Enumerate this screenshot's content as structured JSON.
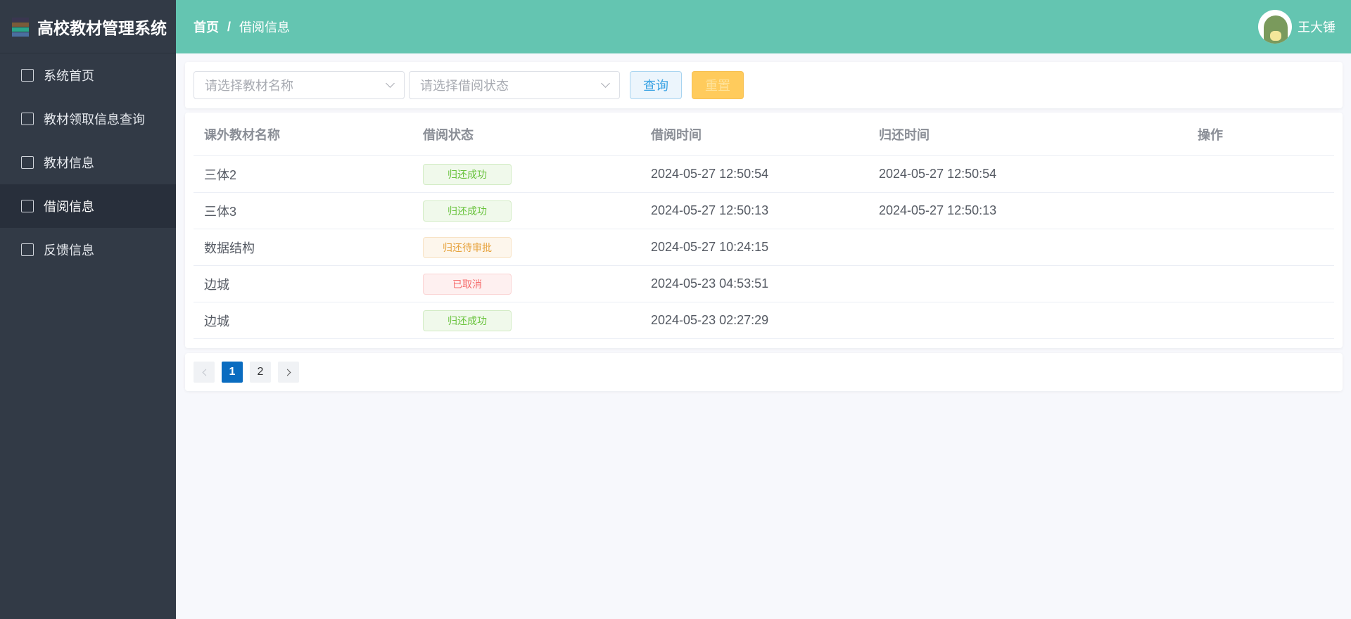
{
  "app": {
    "title": "高校教材管理系统"
  },
  "sidebar": {
    "items": [
      {
        "label": "系统首页",
        "icon": "home-icon"
      },
      {
        "label": "教材领取信息查询",
        "icon": "notebook-icon"
      },
      {
        "label": "教材信息",
        "icon": "book-icon"
      },
      {
        "label": "借阅信息",
        "icon": "document-icon",
        "active": true
      },
      {
        "label": "反馈信息",
        "icon": "chat-icon"
      }
    ]
  },
  "header": {
    "breadcrumb": [
      "首页",
      "借阅信息"
    ],
    "separator": "/",
    "user": "王大锤"
  },
  "search": {
    "name_placeholder": "请选择教材名称",
    "status_placeholder": "请选择借阅状态",
    "query": "查询",
    "reset": "重置"
  },
  "table": {
    "columns": [
      "课外教材名称",
      "借阅状态",
      "借阅时间",
      "归还时间",
      "操作"
    ],
    "rows": [
      {
        "name": "三体2",
        "status": "归还成功",
        "status_type": "success",
        "borrow": "2024-05-27 12:50:54",
        "return": "2024-05-27 12:50:54"
      },
      {
        "name": "三体3",
        "status": "归还成功",
        "status_type": "success",
        "borrow": "2024-05-27 12:50:13",
        "return": "2024-05-27 12:50:13"
      },
      {
        "name": "数据结构",
        "status": "归还待审批",
        "status_type": "warning",
        "borrow": "2024-05-27 10:24:15",
        "return": ""
      },
      {
        "name": "边城",
        "status": "已取消",
        "status_type": "danger",
        "borrow": "2024-05-23 04:53:51",
        "return": ""
      },
      {
        "name": "边城",
        "status": "归还成功",
        "status_type": "success",
        "borrow": "2024-05-23 02:27:29",
        "return": ""
      }
    ]
  },
  "pagination": {
    "pages": [
      "1",
      "2"
    ],
    "current": "1"
  },
  "colors": {
    "header": "#64c5b1",
    "sidebar": "#323a46",
    "success": "#67c23a",
    "warning": "#e6a23c",
    "danger": "#f56c6c",
    "page_active": "#0a6cc0"
  }
}
